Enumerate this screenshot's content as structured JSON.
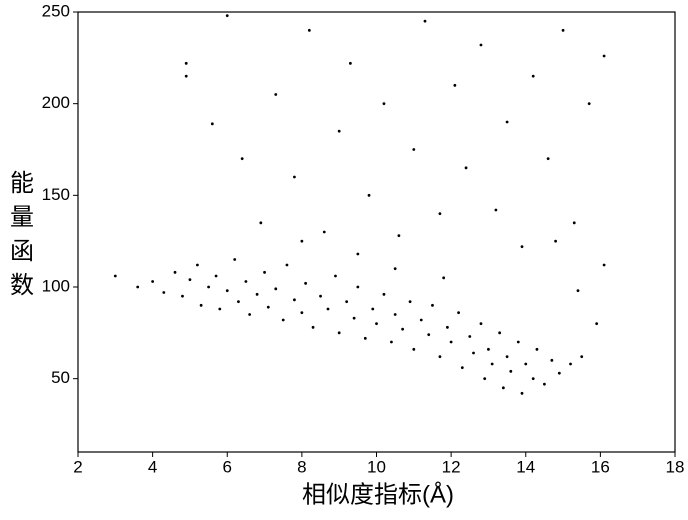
{
  "chart_data": {
    "type": "scatter",
    "x_label": "相似度指标(Å)",
    "y_label": "能量函数",
    "xlim": [
      2,
      18
    ],
    "xticks": [
      2,
      4,
      6,
      8,
      10,
      12,
      14,
      16,
      18
    ],
    "ylim": [
      10,
      250
    ],
    "yticks": [
      50,
      100,
      150,
      200,
      250
    ],
    "color": "#000000",
    "x": [
      3.0,
      3.6,
      4.0,
      4.3,
      4.6,
      4.8,
      5.0,
      5.2,
      5.3,
      5.5,
      5.7,
      5.8,
      6.0,
      6.2,
      6.3,
      6.5,
      6.6,
      6.8,
      7.0,
      7.1,
      7.3,
      7.5,
      7.6,
      7.8,
      8.0,
      8.1,
      8.3,
      8.5,
      8.7,
      8.9,
      9.0,
      9.2,
      9.4,
      9.5,
      9.7,
      9.9,
      10.0,
      10.2,
      10.4,
      10.5,
      10.7,
      10.9,
      11.0,
      11.2,
      11.4,
      11.5,
      11.7,
      11.9,
      12.0,
      12.2,
      12.3,
      12.5,
      12.6,
      12.8,
      12.9,
      13.0,
      13.1,
      13.3,
      13.4,
      13.5,
      13.6,
      13.8,
      13.9,
      14.0,
      14.2,
      14.3,
      14.5,
      14.7,
      14.9,
      15.2,
      15.5,
      4.9,
      4.9,
      5.6,
      6.0,
      6.4,
      6.9,
      7.3,
      7.8,
      8.2,
      8.6,
      9.0,
      9.3,
      9.8,
      10.2,
      10.6,
      11.0,
      11.3,
      11.7,
      12.1,
      12.4,
      12.8,
      13.2,
      13.5,
      13.9,
      14.2,
      14.6,
      15.0,
      15.3,
      15.7,
      16.1,
      16.1,
      15.9,
      15.4,
      14.8,
      10.5,
      9.5,
      8.0,
      11.8
    ],
    "values": [
      106,
      100,
      103,
      97,
      108,
      95,
      104,
      112,
      90,
      100,
      106,
      88,
      98,
      115,
      92,
      103,
      85,
      96,
      108,
      89,
      99,
      82,
      112,
      93,
      86,
      102,
      78,
      95,
      88,
      106,
      75,
      92,
      83,
      100,
      72,
      88,
      80,
      96,
      70,
      85,
      77,
      92,
      66,
      82,
      74,
      90,
      62,
      78,
      70,
      86,
      56,
      73,
      64,
      80,
      50,
      66,
      58,
      75,
      45,
      62,
      54,
      70,
      42,
      58,
      50,
      66,
      47,
      60,
      53,
      58,
      62,
      222,
      215,
      189,
      248,
      170,
      135,
      205,
      160,
      240,
      130,
      185,
      222,
      150,
      200,
      128,
      175,
      245,
      140,
      210,
      165,
      232,
      142,
      190,
      122,
      215,
      170,
      240,
      135,
      200,
      112,
      226,
      80,
      98,
      125,
      110,
      118,
      125,
      105
    ]
  }
}
